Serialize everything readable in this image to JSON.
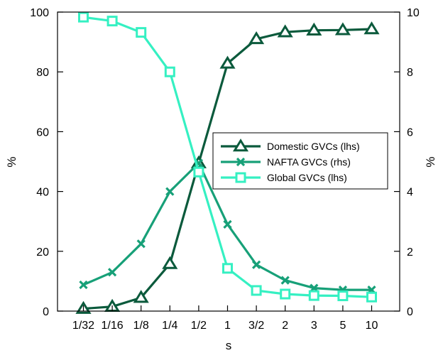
{
  "chart_data": {
    "type": "line",
    "categories": [
      "1/32",
      "1/16",
      "1/8",
      "1/4",
      "1/2",
      "1",
      "3/2",
      "2",
      "3",
      "5",
      "10"
    ],
    "xlabel": "s",
    "ylabel_left": "%",
    "ylabel_right": "%",
    "ylim_left": [
      0,
      100
    ],
    "ylim_right": [
      0,
      10
    ],
    "yticks_left": [
      "0",
      "20",
      "40",
      "60",
      "80",
      "100"
    ],
    "yticks_right": [
      "0",
      "2",
      "4",
      "6",
      "8",
      "10"
    ],
    "grid": false,
    "legend_position": "center-right",
    "series": [
      {
        "name": "Domestic GVCs (lhs)",
        "axis": "left",
        "marker": "triangle",
        "color": "#0b5a3c",
        "values": [
          0.8,
          1.5,
          4.5,
          15.8,
          49.5,
          82.8,
          91.0,
          93.3,
          93.9,
          94.0,
          94.3
        ]
      },
      {
        "name": "NAFTA GVCs (rhs)",
        "axis": "right",
        "marker": "x",
        "color": "#17a078",
        "values": [
          0.88,
          1.3,
          2.25,
          4.0,
          4.95,
          2.9,
          1.55,
          1.03,
          0.77,
          0.71,
          0.71
        ]
      },
      {
        "name": "Global GVCs (lhs)",
        "axis": "left",
        "marker": "square",
        "color": "#35f0c2",
        "values": [
          98.3,
          97.0,
          93.2,
          80.0,
          46.5,
          14.3,
          6.9,
          5.7,
          5.2,
          5.1,
          4.7
        ]
      }
    ]
  }
}
